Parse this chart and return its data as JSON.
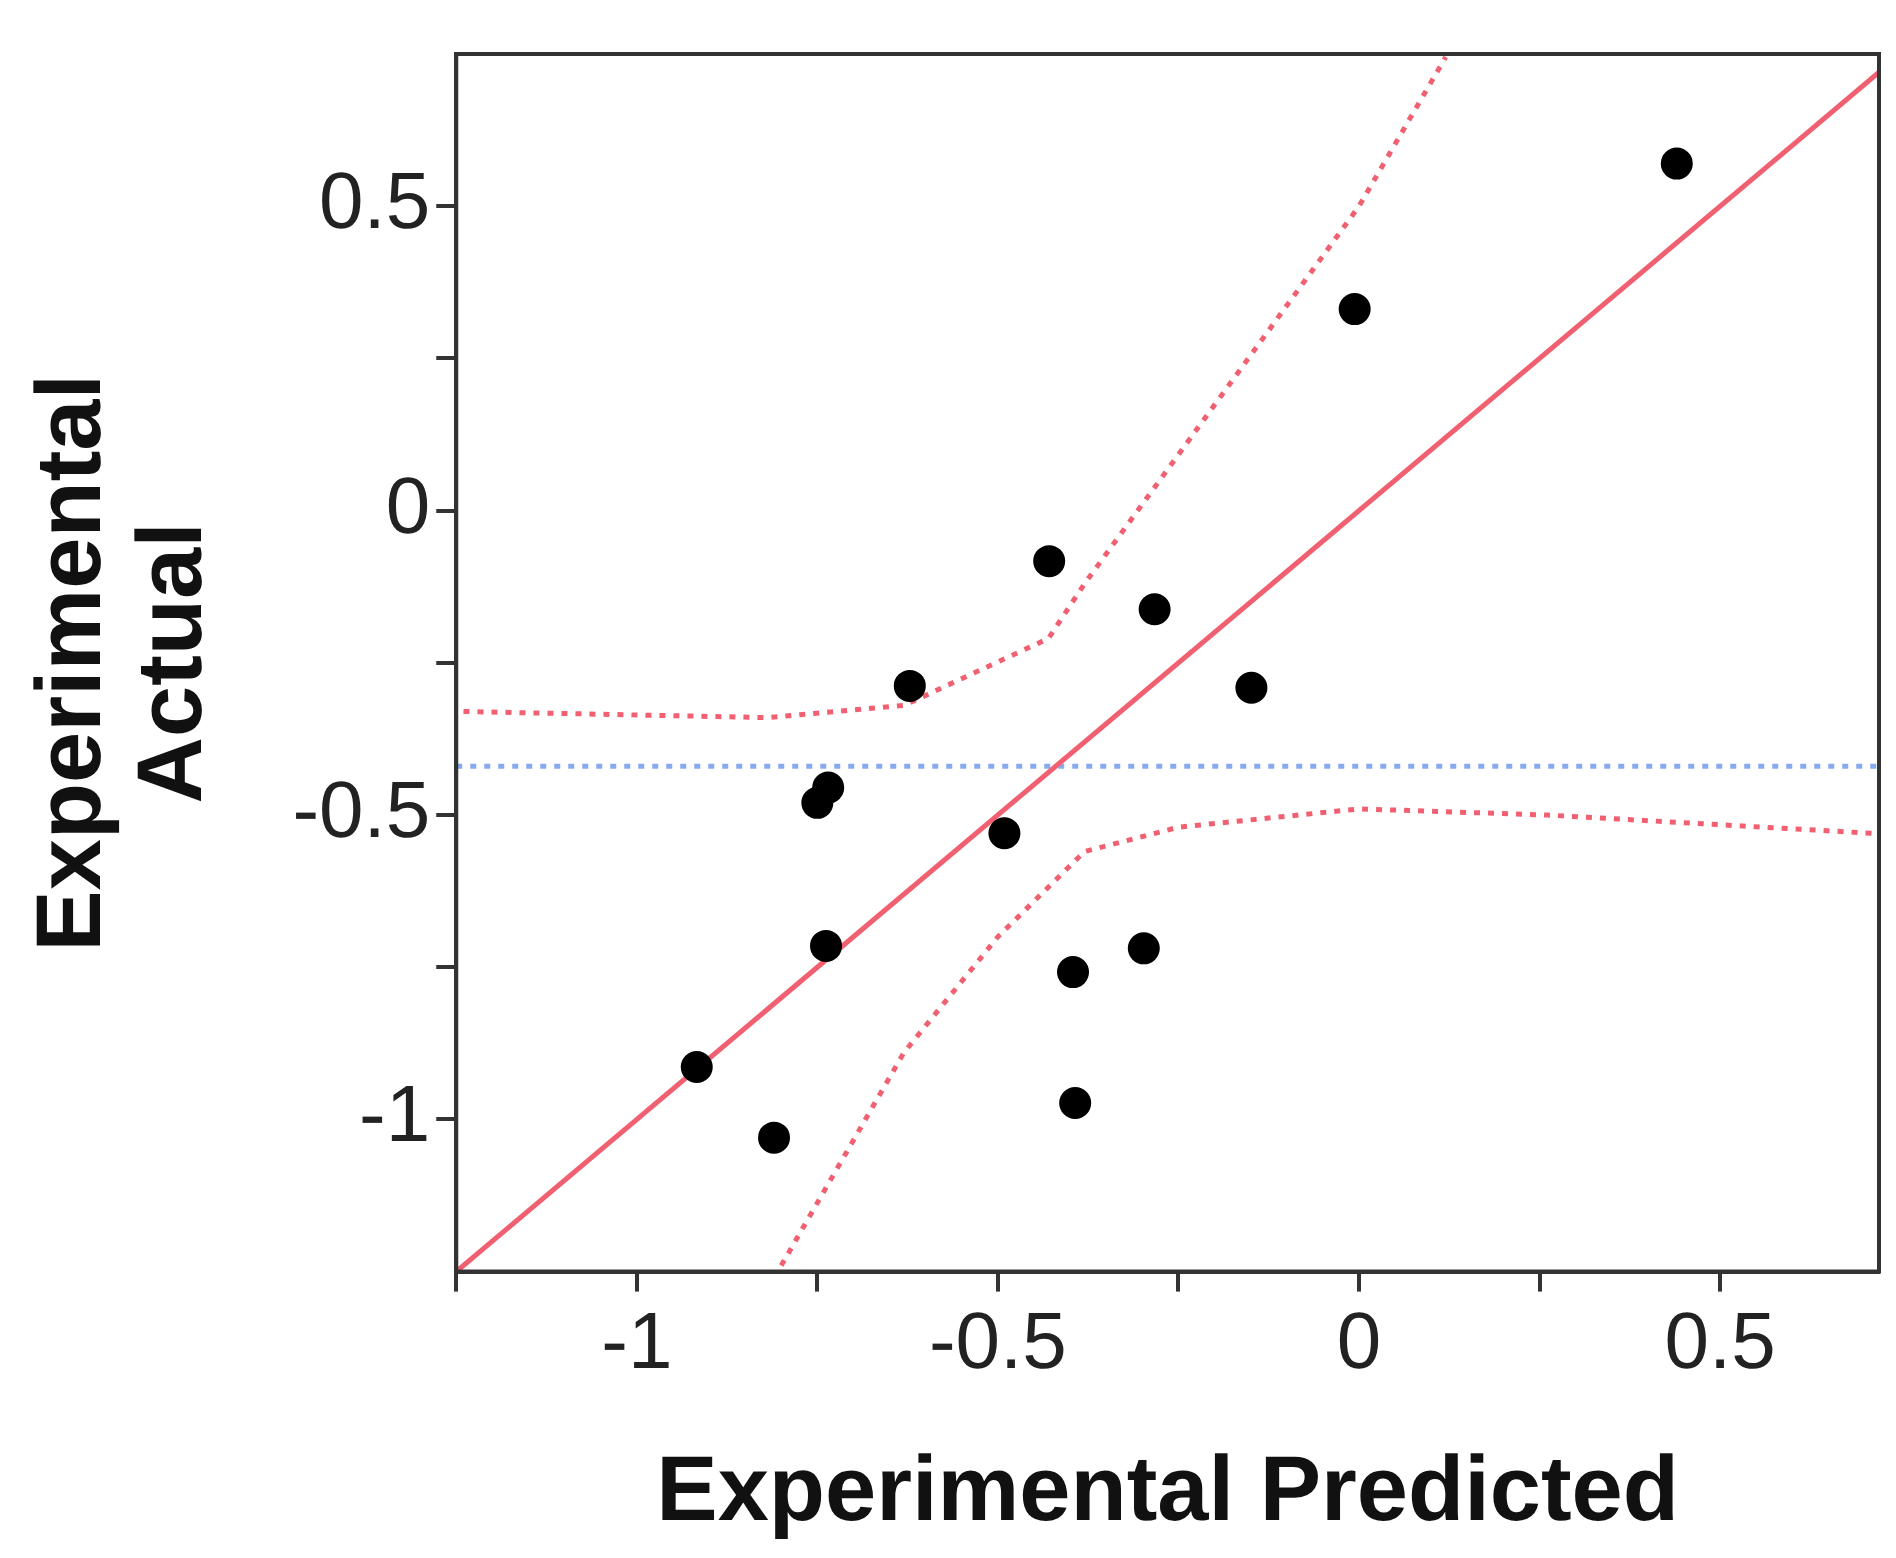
{
  "chart_data": {
    "type": "scatter",
    "xlabel": "Experimental Predicted",
    "ylabel": "Experimental Actual",
    "xlim": [
      -1.25,
      0.72
    ],
    "ylim": [
      -1.25,
      0.75
    ],
    "xticks": [
      {
        "value": -1.25,
        "label": null
      },
      -1,
      {
        "value": -0.75,
        "label": null
      },
      -0.5,
      {
        "value": -0.25,
        "label": null
      },
      0,
      {
        "value": 0.25,
        "label": null
      },
      0.5
    ],
    "yticks": [
      -1,
      {
        "value": -0.75,
        "label": null
      },
      -0.5,
      {
        "value": -0.25,
        "label": null
      },
      0,
      {
        "value": 0.25,
        "label": null
      },
      0.5
    ],
    "grid": false,
    "legend": false,
    "series": [
      {
        "marker": "circle",
        "color": "#000000",
        "x": [
          -0.917,
          -0.81,
          -0.75,
          -0.735,
          -0.738,
          -0.622,
          -0.491,
          -0.429,
          -0.396,
          -0.393,
          -0.298,
          -0.283,
          -0.149,
          -0.006,
          0.44
        ],
        "values": [
          -0.914,
          -1.03,
          -0.48,
          -0.455,
          -0.715,
          -0.288,
          -0.53,
          -0.083,
          -0.758,
          -0.973,
          -0.719,
          -0.162,
          -0.291,
          0.331,
          0.57
        ]
      },
      {
        "type": "line",
        "marker": "none",
        "color": "#f06070",
        "line_style": "solid",
        "x": [
          -1.25,
          0.72
        ],
        "values": [
          -1.25,
          0.72
        ]
      },
      {
        "type": "line",
        "marker": "none",
        "color": "#f06070",
        "line_style": "dotted",
        "x": [
          -1.24,
          -0.82,
          -0.63,
          -0.43,
          -0.38,
          -0.19,
          0,
          0.12
        ],
        "values": [
          -0.33,
          -0.34,
          -0.32,
          -0.21,
          -0.12,
          0.19,
          0.5,
          0.745
        ]
      },
      {
        "type": "line",
        "marker": "none",
        "color": "#f06070",
        "line_style": "dotted",
        "x": [
          -0.8,
          -0.63,
          -0.5,
          -0.38,
          -0.25,
          0,
          0.26,
          0.71
        ],
        "values": [
          -1.24,
          -0.89,
          -0.7,
          -0.56,
          -0.52,
          -0.49,
          -0.5,
          -0.53
        ]
      }
    ],
    "ref_lines": [
      {
        "axis": "y",
        "value": -0.42,
        "color": "#88aaf0",
        "line_style": "dotted"
      }
    ]
  }
}
